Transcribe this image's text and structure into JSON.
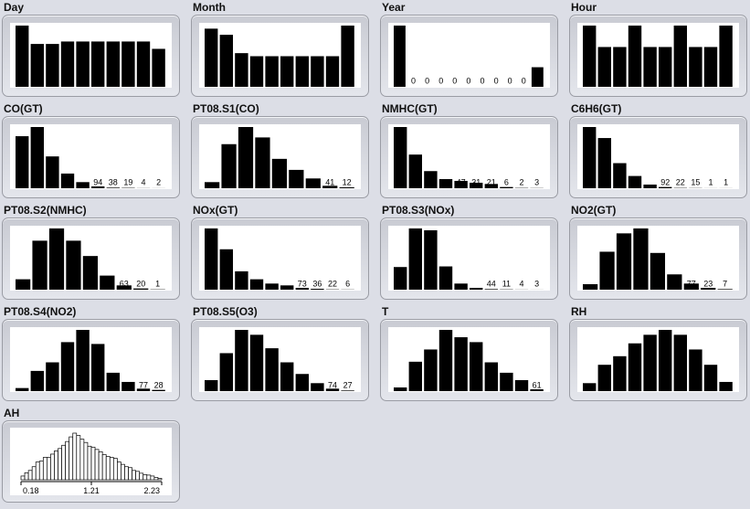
{
  "chart_data": [
    {
      "type": "bar",
      "title": "Day",
      "values": [
        100,
        70,
        70,
        74,
        74,
        74,
        74,
        74,
        74,
        62
      ],
      "labels": [
        "",
        "",
        "",
        "",
        "",
        "",
        "",
        "",
        "",
        ""
      ],
      "color": "#000000"
    },
    {
      "type": "bar",
      "title": "Month",
      "values": [
        95,
        85,
        55,
        50,
        50,
        50,
        50,
        50,
        50,
        100
      ],
      "labels": [
        "",
        "",
        "",
        "",
        "",
        "",
        "",
        "",
        "",
        ""
      ],
      "color": "#000000"
    },
    {
      "type": "bar",
      "title": "Year",
      "values": [
        100,
        0,
        0,
        0,
        0,
        0,
        0,
        0,
        0,
        0,
        32
      ],
      "labels": [
        "",
        "0",
        "0",
        "0",
        "0",
        "0",
        "0",
        "0",
        "0",
        "0",
        ""
      ],
      "color": "#000000"
    },
    {
      "type": "bar",
      "title": "Hour",
      "values": [
        100,
        65,
        65,
        100,
        65,
        65,
        100,
        65,
        65,
        100
      ],
      "labels": [
        "",
        "",
        "",
        "",
        "",
        "",
        "",
        "",
        "",
        ""
      ],
      "color": "#000000"
    },
    {
      "type": "bar",
      "title": "CO(GT)",
      "values": [
        85,
        100,
        52,
        24,
        10,
        3,
        1,
        0.6,
        0.2,
        0.1
      ],
      "labels": [
        "",
        "",
        "",
        "",
        "",
        "94",
        "38",
        "19",
        "4",
        "2"
      ],
      "color": "#000000"
    },
    {
      "type": "bar",
      "title": "PT08.S1(CO)",
      "values": [
        10,
        72,
        100,
        83,
        48,
        30,
        16,
        4,
        1.5
      ],
      "labels": [
        "",
        "",
        "",
        "",
        "",
        "",
        "",
        "41",
        "12"
      ],
      "color": "#000000"
    },
    {
      "type": "bar",
      "title": "NMHC(GT)",
      "values": [
        100,
        55,
        28,
        15,
        12,
        9,
        7,
        2,
        0.5,
        0.3
      ],
      "labels": [
        "",
        "",
        "",
        "64",
        "47",
        "31",
        "21",
        "6",
        "2",
        "3"
      ],
      "color": "#000000"
    },
    {
      "type": "bar",
      "title": "C6H6(GT)",
      "values": [
        100,
        82,
        41,
        20,
        6,
        2,
        0.5,
        0.3,
        0.1,
        0.1
      ],
      "labels": [
        "",
        "",
        "",
        "",
        "",
        "92",
        "22",
        "15",
        "1",
        "1"
      ],
      "color": "#000000"
    },
    {
      "type": "bar",
      "title": "PT08.S2(NMHC)",
      "values": [
        17,
        80,
        100,
        80,
        55,
        23,
        7,
        2,
        0.5
      ],
      "labels": [
        "",
        "",
        "",
        "",
        "",
        "",
        "63",
        "20",
        "1"
      ],
      "color": "#000000"
    },
    {
      "type": "bar",
      "title": "NOx(GT)",
      "values": [
        100,
        66,
        30,
        17,
        10,
        7,
        3,
        1.5,
        0.5,
        0.3
      ],
      "labels": [
        "",
        "",
        "",
        "",
        "",
        "",
        "73",
        "36",
        "22",
        "6"
      ],
      "color": "#000000"
    },
    {
      "type": "bar",
      "title": "PT08.S3(NOx)",
      "values": [
        37,
        100,
        97,
        38,
        10,
        3,
        1,
        0.5,
        0.2,
        0.1
      ],
      "labels": [
        "",
        "",
        "",
        "",
        "",
        "",
        "44",
        "11",
        "4",
        "3"
      ],
      "color": "#000000"
    },
    {
      "type": "bar",
      "title": "NO2(GT)",
      "values": [
        9,
        62,
        92,
        100,
        60,
        25,
        10,
        3,
        1
      ],
      "labels": [
        "",
        "",
        "",
        "",
        "",
        "",
        "77",
        "23",
        "7"
      ],
      "color": "#000000"
    },
    {
      "type": "bar",
      "title": "PT08.S4(NO2)",
      "values": [
        5,
        33,
        47,
        80,
        100,
        77,
        30,
        15,
        4,
        2
      ],
      "labels": [
        "",
        "",
        "",
        "",
        "",
        "",
        "",
        "",
        "77",
        "28"
      ],
      "color": "#000000"
    },
    {
      "type": "bar",
      "title": "PT08.S5(O3)",
      "values": [
        18,
        62,
        100,
        92,
        70,
        47,
        28,
        13,
        4,
        1
      ],
      "labels": [
        "",
        "",
        "",
        "",
        "",
        "",
        "",
        "",
        "74",
        "27"
      ],
      "color": "#000000"
    },
    {
      "type": "bar",
      "title": "T",
      "values": [
        6,
        48,
        68,
        100,
        88,
        80,
        47,
        30,
        18,
        3
      ],
      "labels": [
        "",
        "",
        "",
        "",
        "",
        "",
        "",
        "",
        "",
        "61"
      ],
      "color": "#000000"
    },
    {
      "type": "bar",
      "title": "RH",
      "values": [
        13,
        43,
        57,
        78,
        92,
        100,
        92,
        68,
        43,
        15
      ],
      "labels": [
        "",
        "",
        "",
        "",
        "",
        "",
        "",
        "",
        "",
        ""
      ],
      "color": "#000000"
    },
    {
      "type": "histogram",
      "title": "AH",
      "values": [
        8,
        15,
        20,
        28,
        38,
        40,
        48,
        48,
        55,
        62,
        67,
        74,
        82,
        92,
        100,
        95,
        87,
        80,
        72,
        70,
        65,
        60,
        54,
        50,
        48,
        46,
        38,
        33,
        28,
        26,
        20,
        18,
        14,
        11,
        10,
        8,
        5,
        3
      ],
      "color": "#ffffff",
      "x_ticks": [
        "0.18",
        "1.21",
        "2.23"
      ]
    }
  ]
}
